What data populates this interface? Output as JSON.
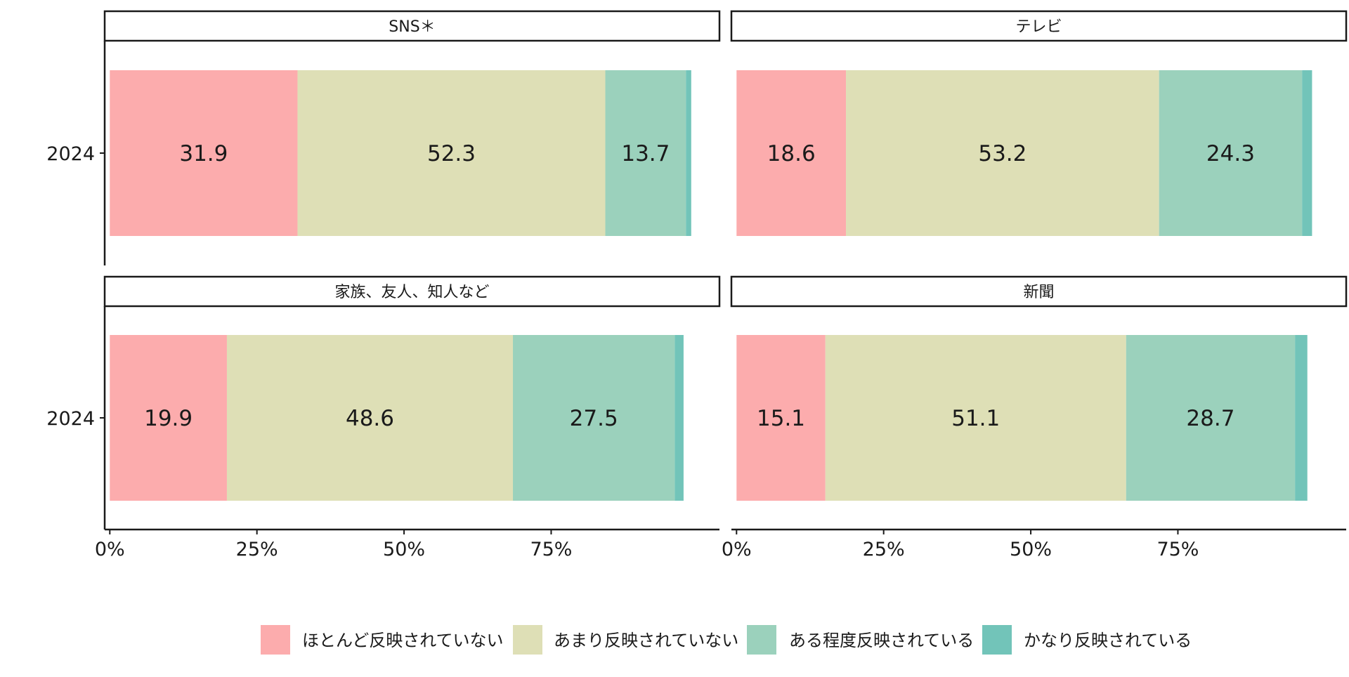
{
  "chart_data": {
    "type": "bar",
    "orientation": "horizontal",
    "stacked": true,
    "categories": [
      "2024"
    ],
    "x_ticks": [
      "0%",
      "25%",
      "50%",
      "75%"
    ],
    "series_info": [
      {
        "name": "ほとんど反映されていない",
        "color": "#fcacad"
      },
      {
        "name": "あまり反映されていない",
        "color": "#dedfb6"
      },
      {
        "name": "ある程度反映されている",
        "color": "#9bd1bc"
      },
      {
        "name": "かなり反映されている",
        "color": "#72c4b9"
      }
    ],
    "panels": [
      {
        "title": "SNS＊",
        "values": [
          31.9,
          52.3,
          13.7,
          0.9
        ],
        "labels": [
          "31.9",
          "52.3",
          "13.7",
          ""
        ]
      },
      {
        "title": "テレビ",
        "values": [
          18.6,
          53.2,
          24.3,
          1.7
        ],
        "labels": [
          "18.6",
          "53.2",
          "24.3",
          ""
        ]
      },
      {
        "title": "家族、友人、知人など",
        "values": [
          19.9,
          48.6,
          27.5,
          1.5
        ],
        "labels": [
          "19.9",
          "48.6",
          "27.5",
          ""
        ]
      },
      {
        "title": "新聞",
        "values": [
          15.1,
          51.1,
          28.7,
          2.1
        ],
        "labels": [
          "15.1",
          "51.1",
          "28.7",
          ""
        ]
      }
    ],
    "legend_position": "bottom"
  }
}
